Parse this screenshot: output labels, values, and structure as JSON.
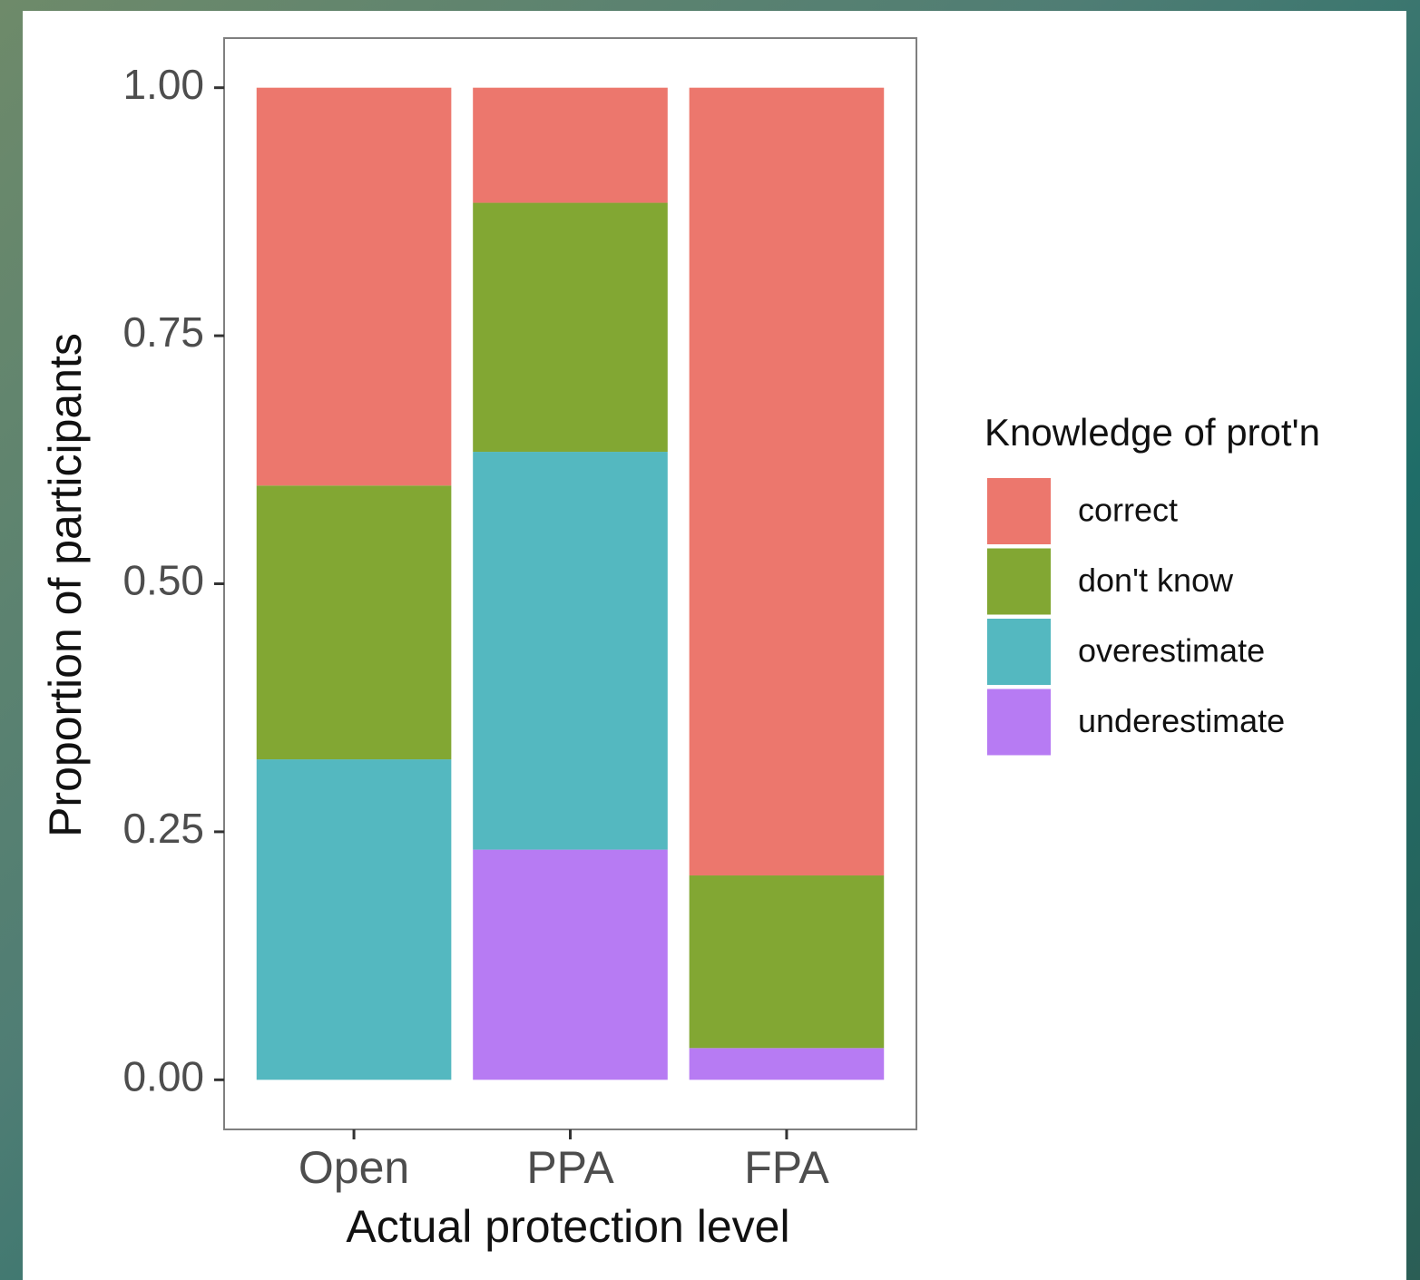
{
  "chart_data": {
    "type": "stacked_bar",
    "xlabel": "Actual protection level",
    "ylabel": "Proportion of participants",
    "legend_title": "Knowledge of prot'n",
    "legend_position": "right",
    "categories": [
      "Open",
      "PPA",
      "FPA"
    ],
    "series": [
      {
        "name": "correct",
        "color": "#ec776d",
        "values": [
          0.401,
          0.116,
          0.794
        ]
      },
      {
        "name": "don't know",
        "color": "#82a733",
        "values": [
          0.276,
          0.251,
          0.174
        ]
      },
      {
        "name": "overestimate",
        "color": "#54b8c0",
        "values": [
          0.323,
          0.401,
          0
        ]
      },
      {
        "name": "underestimate",
        "color": "#b77bf3",
        "values": [
          0,
          0.232,
          0.032
        ]
      }
    ],
    "ylim": [
      -0.05,
      1.05
    ],
    "yticks": [
      {
        "value": 0,
        "label": "0.00"
      },
      0.25,
      {
        "value": 0.5,
        "label": "0.50"
      },
      0.75,
      {
        "value": 1,
        "label": "1.00"
      }
    ]
  }
}
